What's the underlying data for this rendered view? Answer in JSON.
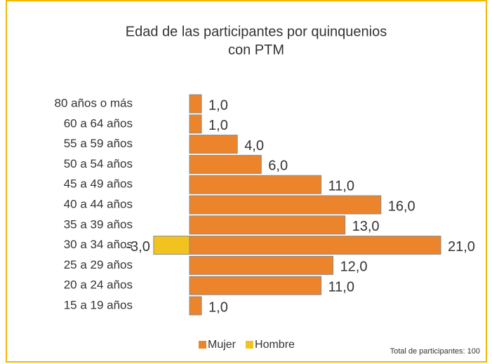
{
  "chart_data": {
    "type": "bar",
    "orientation": "horizontal",
    "title": [
      "Edad de las participantes por quinquenios",
      "con PTM"
    ],
    "categories": [
      "80 años o más",
      "60 a 64 años",
      "55 a 59 años",
      "50 a 54 años",
      "45 a 49 años",
      "40 a 44 años",
      "35 a 39 años",
      "30 a 34 años",
      "25 a 29 años",
      "20 a 24 años",
      "15 a 19 años"
    ],
    "series": [
      {
        "name": "Mujer",
        "color": "#ec842b",
        "values": [
          1,
          1,
          4,
          6,
          11,
          16,
          13,
          21,
          12,
          11,
          1
        ],
        "value_labels": [
          "1,0",
          "1,0",
          "4,0",
          "6,0",
          "11,0",
          "16,0",
          "13,0",
          "21,0",
          "12,0",
          "11,0",
          "1,0"
        ]
      },
      {
        "name": "Hombre",
        "color": "#f2c21e",
        "values": [
          null,
          null,
          null,
          null,
          null,
          null,
          null,
          -3,
          null,
          null,
          null
        ],
        "value_labels": [
          null,
          null,
          null,
          null,
          null,
          null,
          null,
          "-3,0",
          null,
          null,
          null
        ]
      }
    ],
    "annotation": "Total de participantes: 100",
    "legend": "bottom"
  }
}
